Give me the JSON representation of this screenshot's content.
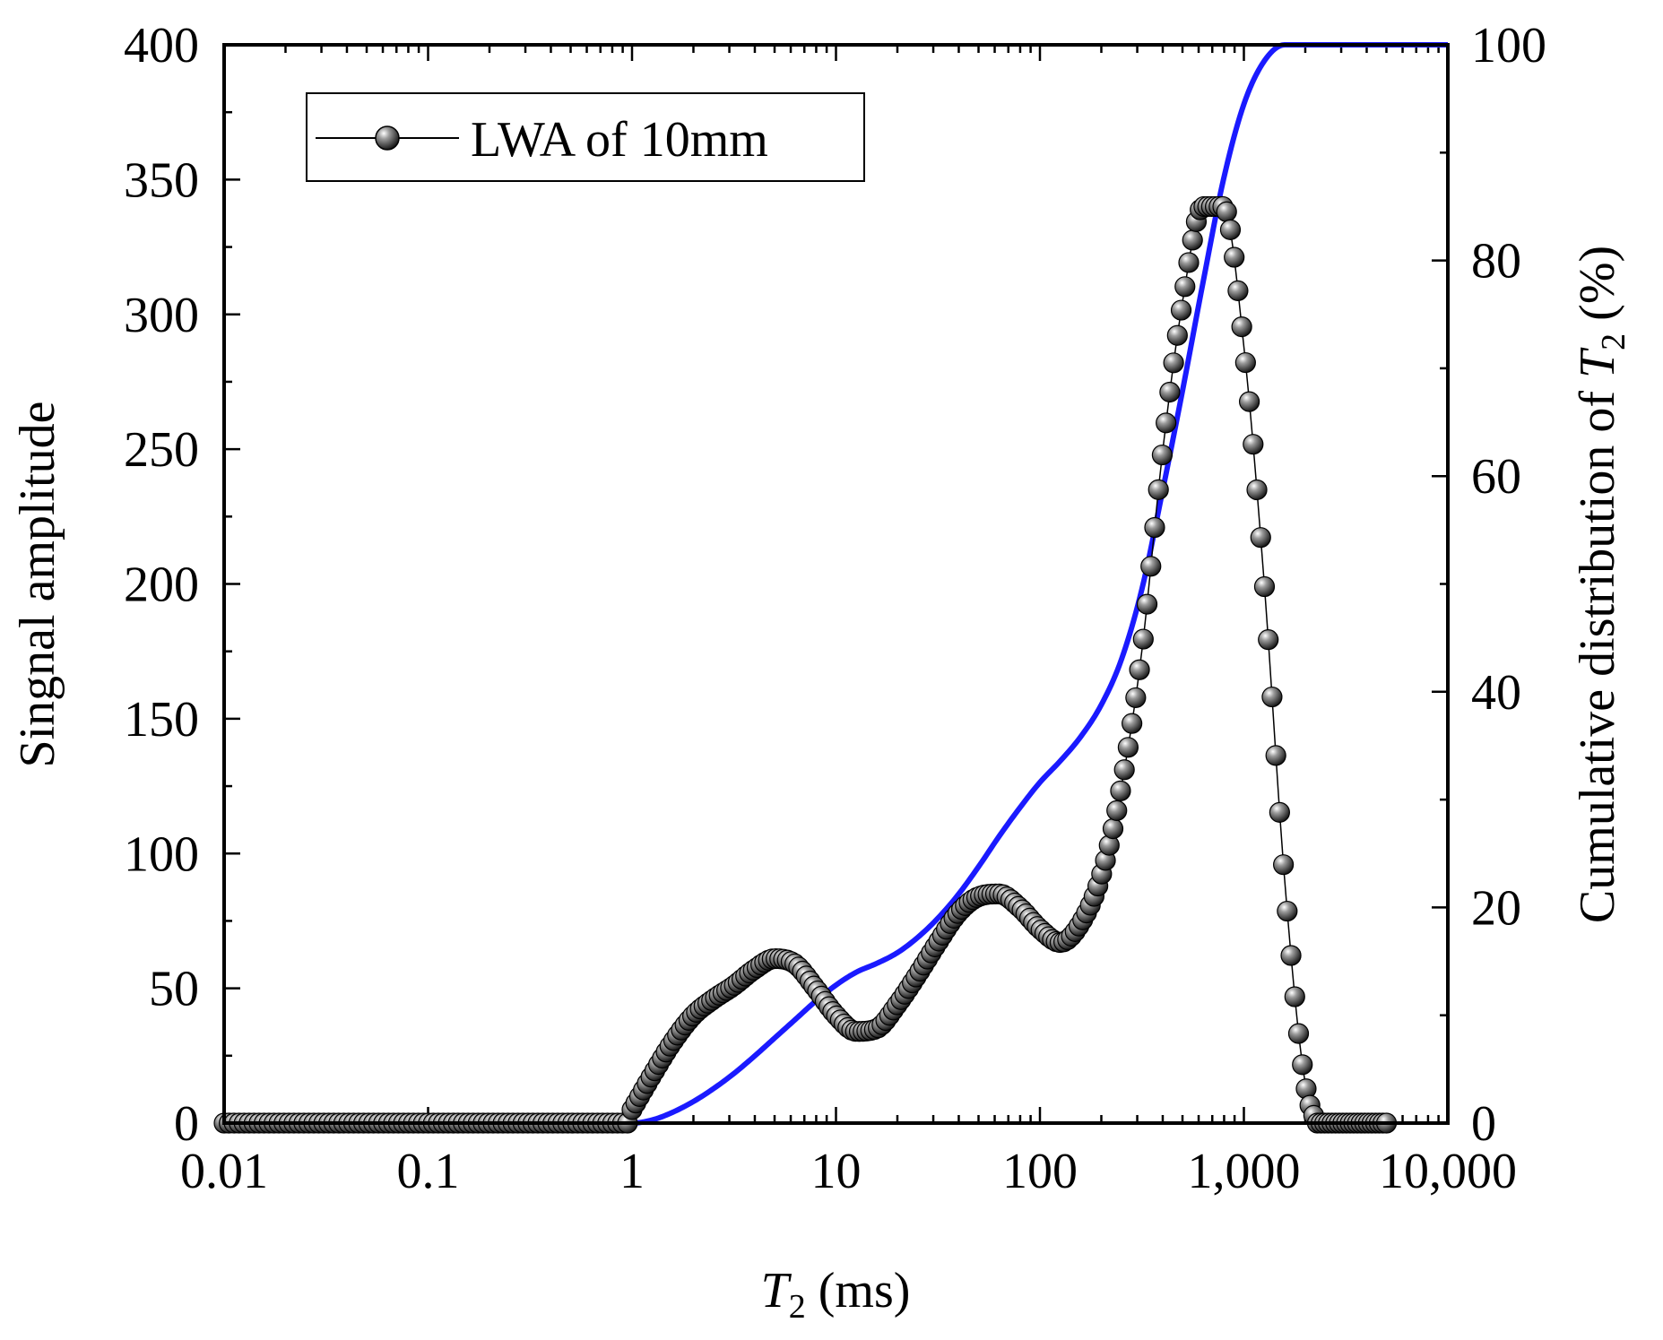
{
  "chart_data": {
    "type": "line",
    "title": "",
    "xlabel_main": "T",
    "xlabel_sub": "2",
    "xlabel_unit": " (ms)",
    "ylabel_left": "Singnal amplitude",
    "ylabel_right_pre": "Cumulative distribution of ",
    "ylabel_right_var": "T",
    "ylabel_right_sub": "2",
    "ylabel_right_post": " (%)",
    "x_scale": "log",
    "xlim": [
      0.01,
      10000
    ],
    "ylim_left": [
      0,
      400
    ],
    "ylim_right": [
      0,
      100
    ],
    "x_tick_values": [
      0.01,
      0.1,
      1,
      10,
      100,
      1000,
      10000
    ],
    "x_tick_labels": [
      "0.01",
      "0.1",
      "1",
      "10",
      "100",
      "1,000",
      "10,000"
    ],
    "y_left_tick_values": [
      0,
      50,
      100,
      150,
      200,
      250,
      300,
      350,
      400
    ],
    "y_left_tick_labels": [
      "0",
      "50",
      "100",
      "150",
      "200",
      "250",
      "300",
      "350",
      "400"
    ],
    "y_right_tick_values": [
      0,
      20,
      40,
      60,
      80,
      100
    ],
    "y_right_tick_labels": [
      "0",
      "20",
      "40",
      "60",
      "80",
      "100"
    ],
    "legend_position": "top-left",
    "colors": {
      "axis": "#000000",
      "cumulative": "#1a1aff",
      "marker": "#2b2b2b"
    },
    "series": [
      {
        "name": "LWA of 10mm",
        "axis": "left",
        "style": "line-markers",
        "x": [
          1.0,
          1.26,
          1.58,
          2.0,
          2.51,
          3.16,
          3.98,
          5.01,
          6.31,
          7.94,
          10.0,
          12.6,
          15.8,
          20.0,
          25.1,
          31.6,
          39.8,
          50.1,
          63.1,
          79.4,
          100,
          126,
          158,
          200,
          251,
          316,
          398,
          501,
          631,
          794,
          1000,
          1259,
          1585,
          1995,
          2512,
          3162,
          3981,
          5012
        ],
        "y": [
          5,
          18,
          30,
          40,
          46,
          51,
          57,
          61,
          59,
          50,
          40,
          34,
          35,
          44,
          55,
          67,
          78,
          84,
          85,
          80,
          72,
          67,
          74,
          92,
          125,
          175,
          248,
          305,
          340,
          340,
          288,
          200,
          90,
          15,
          0,
          0,
          0,
          0
        ]
      },
      {
        "name": "Cumulative distribution",
        "axis": "right",
        "style": "line",
        "x": [
          0.01,
          1.0,
          1.26,
          1.58,
          2.0,
          2.51,
          3.16,
          3.98,
          5.01,
          6.31,
          7.94,
          10.0,
          12.6,
          15.8,
          20.0,
          25.1,
          31.6,
          39.8,
          50.1,
          63.1,
          79.4,
          100,
          126,
          158,
          200,
          251,
          316,
          398,
          501,
          631,
          794,
          1000,
          1259,
          1585,
          2000,
          10000
        ],
        "y": [
          0,
          0,
          0.3,
          1.0,
          2.0,
          3.2,
          4.6,
          6.2,
          7.9,
          9.6,
          11.3,
          12.8,
          14.0,
          14.8,
          15.8,
          17.2,
          19.0,
          21.2,
          23.8,
          26.6,
          29.2,
          31.6,
          33.6,
          35.8,
          38.8,
          43.0,
          49.5,
          58.5,
          68.0,
          78.0,
          87.5,
          94.5,
          98.5,
          100,
          100,
          100
        ]
      }
    ]
  }
}
